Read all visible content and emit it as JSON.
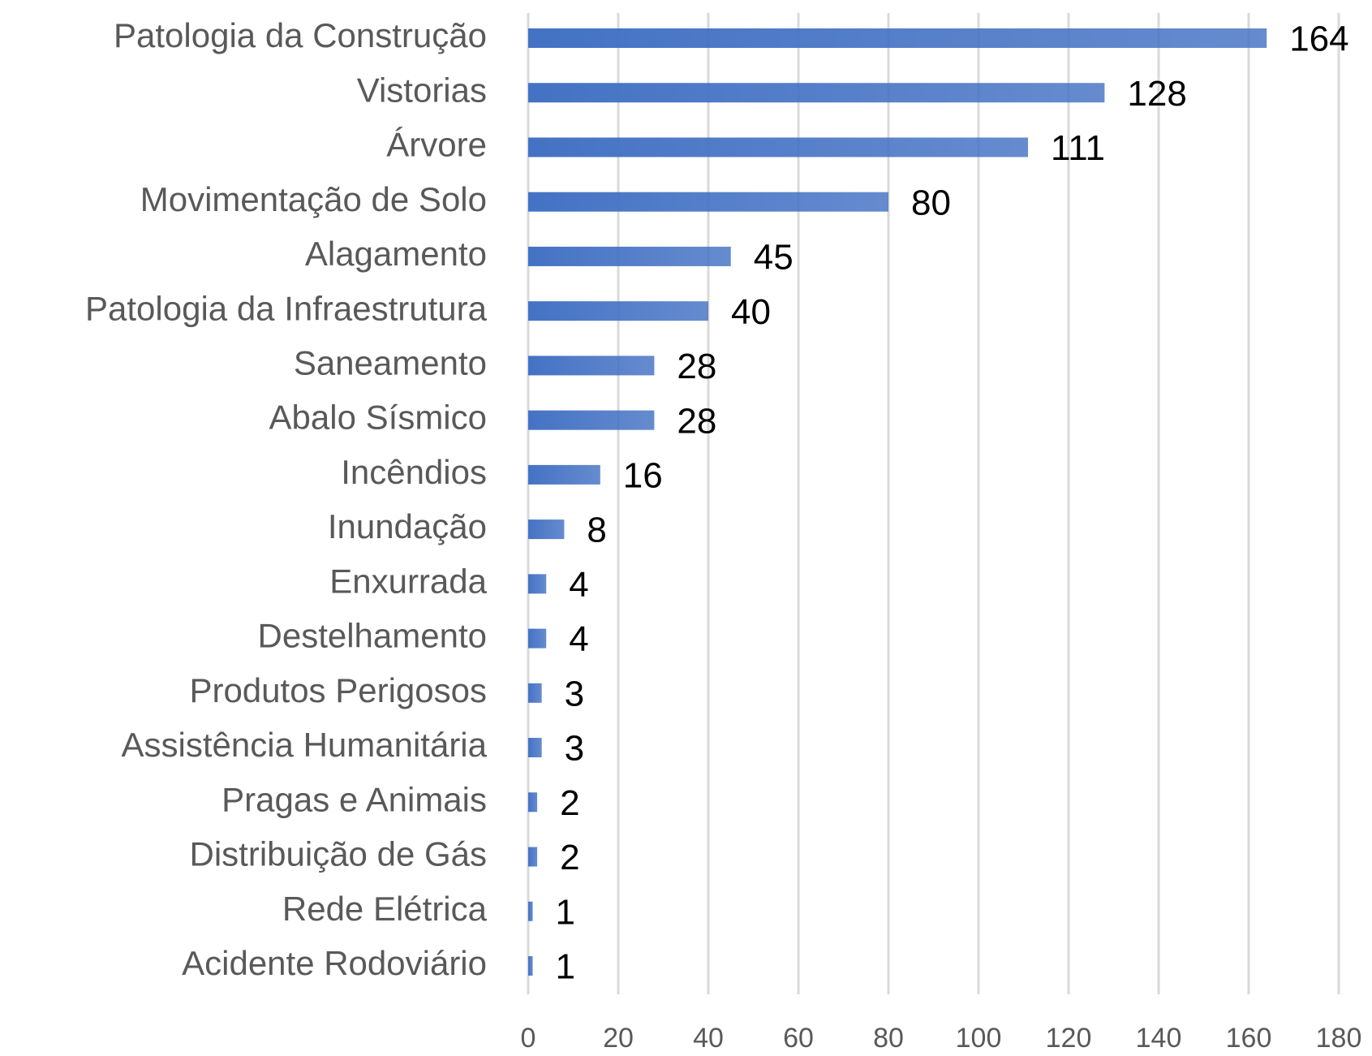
{
  "chart_data": {
    "type": "bar",
    "orientation": "horizontal",
    "categories": [
      "Patologia da Construção",
      "Vistorias",
      "Árvore",
      "Movimentação de Solo",
      "Alagamento",
      "Patologia da Infraestrutura",
      "Saneamento",
      "Abalo Sísmico",
      "Incêndios",
      "Inundação",
      "Enxurrada",
      "Destelhamento",
      "Produtos Perigosos",
      "Assistência Humanitária",
      "Pragas e Animais",
      "Distribuição de Gás",
      "Rede Elétrica",
      "Acidente Rodoviário"
    ],
    "values": [
      164,
      128,
      111,
      80,
      45,
      40,
      28,
      28,
      16,
      8,
      4,
      4,
      3,
      3,
      2,
      2,
      1,
      1
    ],
    "color": "#4472c4",
    "xlim": [
      0,
      180
    ],
    "xticks": [
      0,
      20,
      40,
      60,
      80,
      100,
      120,
      140,
      160,
      180
    ],
    "grid": true
  }
}
